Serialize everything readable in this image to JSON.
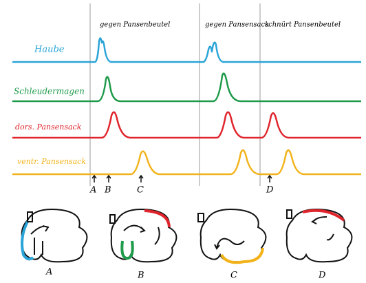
{
  "column_labels": [
    "gegen Pansenbeutel",
    "gegen Pansensack",
    "schnürt Pansenbeutel"
  ],
  "row_labels": [
    "Haube",
    "Schleudermagen",
    "dors. Pansensack",
    "ventr. Pansensack"
  ],
  "markers": [
    "A",
    "B",
    "C",
    "D"
  ],
  "figures": [
    "A",
    "B",
    "C",
    "D"
  ]
}
